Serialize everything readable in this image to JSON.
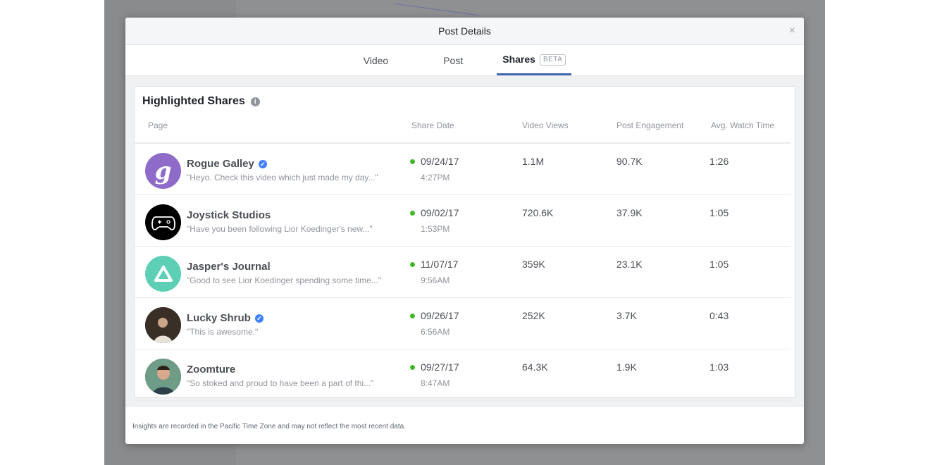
{
  "modal": {
    "title": "Post Details",
    "close": "×"
  },
  "tabs": [
    {
      "label": "Video"
    },
    {
      "label": "Post"
    },
    {
      "label": "Shares",
      "badge": "BETA",
      "active": true
    }
  ],
  "card": {
    "title": "Highlighted Shares",
    "info_icon": "i",
    "columns": [
      "Page",
      "Share Date",
      "Video Views",
      "Post Engagement",
      "Avg. Watch Time"
    ],
    "rows": [
      {
        "name": "Rogue Galley",
        "verified": true,
        "quote": "\"Heyo. Check this video which just made my day...\"",
        "date": "09/24/17",
        "time": "4:27PM",
        "views": "1.1M",
        "engagement": "90.7K",
        "watch": "1:26",
        "avatar_color": "#8e6bc8"
      },
      {
        "name": "Joystick Studios",
        "verified": false,
        "quote": "\"Have you been following Lior Koedinger's new...\"",
        "date": "09/02/17",
        "time": "1:53PM",
        "views": "720.6K",
        "engagement": "37.9K",
        "watch": "1:05",
        "avatar_color": "#000000"
      },
      {
        "name": "Jasper's Journal",
        "verified": false,
        "quote": "\"Good to see Lior Koedinger spending some time...\"",
        "date": "11/07/17",
        "time": "9:56AM",
        "views": "359K",
        "engagement": "23.1K",
        "watch": "1:05",
        "avatar_color": "#5ccfb4"
      },
      {
        "name": "Lucky Shrub",
        "verified": true,
        "quote": "\"This is awesome.\"",
        "date": "09/26/17",
        "time": "6:56AM",
        "views": "252K",
        "engagement": "3.7K",
        "watch": "0:43",
        "avatar_color": "#5a4a3e"
      },
      {
        "name": "Zoomture",
        "verified": false,
        "quote": "\"So stoked and proud to have been a part of thi...\"",
        "date": "09/27/17",
        "time": "8:47AM",
        "views": "64.3K",
        "engagement": "1.9K",
        "watch": "1:03",
        "avatar_color": "#4f7d6a"
      }
    ]
  },
  "footer": "Insights are recorded in the Pacific Time Zone and may not reflect the most recent data.",
  "colors": {
    "accent": "#4267b2",
    "status": "#42b72a",
    "verified": "#4080ff"
  }
}
